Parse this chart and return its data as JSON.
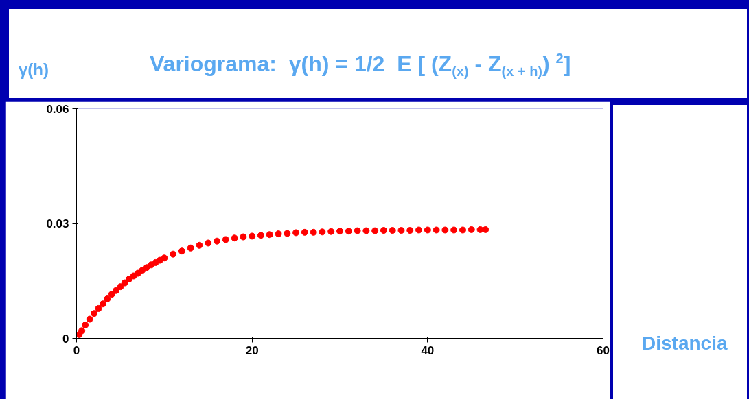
{
  "chart_data": {
    "type": "scatter",
    "title": "Variograma:   γ(h) = 1/2  E [ (Z$_{(x)}$ - Z$_{(x + h)}$) $^{2}$]",
    "ylabel": "γ(h)",
    "xlabel": "Distancia",
    "marker": "circle",
    "grid": false,
    "xlim": [
      0,
      60
    ],
    "xticks": [
      0,
      20,
      40,
      60
    ],
    "ylim": [
      0,
      0.06
    ],
    "yticks": [
      0,
      0.03,
      0.06
    ],
    "series": [
      {
        "color": "#ff0000",
        "x": [
          0.3,
          0.6,
          1,
          1.5,
          2,
          2.5,
          3,
          3.5,
          4,
          4.5,
          5,
          5.5,
          6,
          6.5,
          7,
          7.5,
          8,
          8.5,
          9,
          9.5,
          10,
          11,
          12,
          13,
          14,
          15,
          16,
          17,
          18,
          19,
          20,
          21,
          22,
          23,
          24,
          25,
          26,
          27,
          28,
          29,
          30,
          31,
          32,
          33,
          34,
          35,
          36,
          37,
          38,
          39,
          40,
          41,
          42,
          43,
          44,
          45,
          46,
          46.6
        ],
        "values": [
          0.001,
          0.002,
          0.0035,
          0.005,
          0.0065,
          0.0078,
          0.009,
          0.0103,
          0.0115,
          0.0125,
          0.0135,
          0.0145,
          0.0155,
          0.0163,
          0.017,
          0.0178,
          0.0185,
          0.0192,
          0.0198,
          0.0204,
          0.021,
          0.022,
          0.0228,
          0.0236,
          0.0243,
          0.0249,
          0.0254,
          0.0258,
          0.0262,
          0.0265,
          0.0267,
          0.0269,
          0.0271,
          0.0273,
          0.0274,
          0.0276,
          0.0277,
          0.0277,
          0.0278,
          0.0279,
          0.028,
          0.028,
          0.0281,
          0.0281,
          0.0281,
          0.0282,
          0.0282,
          0.0282,
          0.0282,
          0.0283,
          0.0283,
          0.0283,
          0.0283,
          0.0283,
          0.0283,
          0.0284,
          0.0284,
          0.0284
        ]
      }
    ]
  }
}
